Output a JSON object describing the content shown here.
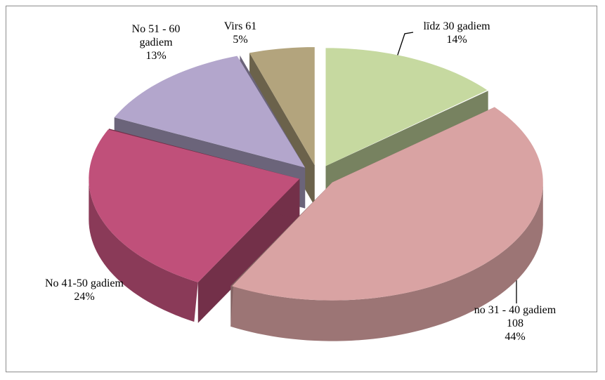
{
  "chart_data": {
    "type": "pie3d",
    "categories": [
      "līdz 30 gadiem",
      "no 31 - 40 gadiem",
      "No 41-50 gadiem",
      "No 51 - 60 gadiem",
      "Virs 61"
    ],
    "values": [
      14,
      44,
      24,
      13,
      5
    ],
    "value_labels": [
      "14%",
      "44%",
      "24%",
      "13%",
      "5%"
    ],
    "counts": [
      null,
      108,
      null,
      null,
      null
    ],
    "colors": [
      "#c6d9a0",
      "#d9a3a3",
      "#c0507a",
      "#b3a6cc",
      "#b3a47d"
    ]
  }
}
